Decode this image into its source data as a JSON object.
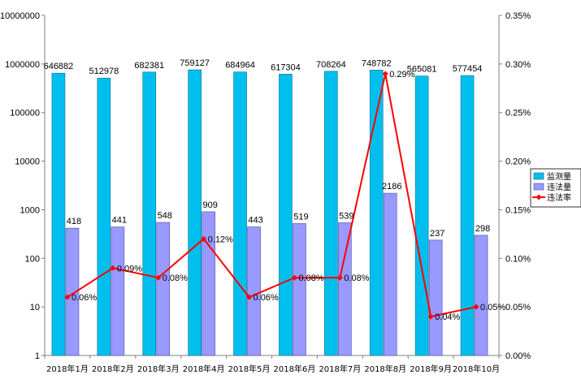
{
  "chart_data": {
    "type": "bar",
    "categories": [
      "2018年1月",
      "2018年2月",
      "2018年3月",
      "2018年4月",
      "2018年5月",
      "2018年6月",
      "2018年7月",
      "2018年8月",
      "2018年9月",
      "2018年10月"
    ],
    "series": [
      {
        "name": "监测量",
        "axis": "left",
        "scale": "log",
        "color": "#00BFEF",
        "values": [
          646882,
          512978,
          682381,
          759127,
          684964,
          617304,
          708264,
          748782,
          565081,
          577454
        ],
        "labels": [
          "646882",
          "512978",
          "682381",
          "759127",
          "684964",
          "617304",
          "708264",
          "748782",
          "565081",
          "577454"
        ]
      },
      {
        "name": "违法量",
        "axis": "left",
        "scale": "log",
        "color": "#9999FF",
        "values": [
          418,
          441,
          548,
          909,
          443,
          519,
          539,
          2186,
          237,
          298
        ],
        "labels": [
          "418",
          "441",
          "548",
          "909",
          "443",
          "519",
          "539",
          "2186",
          "237",
          "298"
        ]
      },
      {
        "name": "违法率",
        "axis": "right",
        "type": "line",
        "color": "#FF0000",
        "values": [
          0.06,
          0.09,
          0.08,
          0.12,
          0.06,
          0.08,
          0.08,
          0.29,
          0.04,
          0.05
        ],
        "labels": [
          "0.06%",
          "0.09%",
          "0.08%",
          "0.12%",
          "0.06%",
          "0.08%",
          "0.08%",
          "0.29%",
          "0.04%",
          "0.05%"
        ]
      }
    ],
    "y_left": {
      "scale": "log",
      "min": 1,
      "max": 10000000,
      "tick_values": [
        1,
        10,
        100,
        1000,
        10000,
        100000,
        1000000,
        10000000
      ],
      "tick_labels": [
        "1",
        "10",
        "100",
        "1000",
        "10000",
        "100000",
        "1000000",
        "10000000"
      ]
    },
    "y_right": {
      "min": 0,
      "max": 0.35,
      "tick_values": [
        0,
        0.05,
        0.1,
        0.15,
        0.2,
        0.25,
        0.3,
        0.35
      ],
      "tick_labels": [
        "0.00%",
        "0.05%",
        "0.10%",
        "0.15%",
        "0.20%",
        "0.25%",
        "0.30%",
        "0.35%"
      ]
    },
    "legend": {
      "position": "right",
      "entries": [
        "监测量",
        "违法量",
        "违法率"
      ]
    },
    "title": "",
    "grid": false
  }
}
